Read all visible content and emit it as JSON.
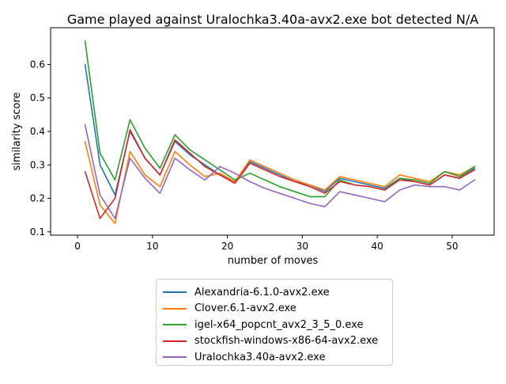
{
  "chart_data": {
    "type": "line",
    "title": "Game played against Uralochka3.40a-avx2.exe bot detected N/A",
    "xlabel": "number of moves",
    "ylabel": "similarity score",
    "xlim": [
      -3.6,
      55.6
    ],
    "ylim": [
      0.09,
      0.71
    ],
    "xticks": [
      0,
      10,
      20,
      30,
      40,
      50
    ],
    "yticks": [
      0.1,
      0.2,
      0.3,
      0.4,
      0.5,
      0.6
    ],
    "ytick_labels": [
      "0.1",
      "0.2",
      "0.3",
      "0.4",
      "0.5",
      "0.6"
    ],
    "grid": false,
    "legend_position": "below",
    "x": [
      1,
      3,
      5,
      7,
      9,
      11,
      13,
      15,
      17,
      19,
      21,
      23,
      25,
      27,
      29,
      31,
      33,
      35,
      37,
      39,
      41,
      43,
      45,
      47,
      49,
      51,
      53
    ],
    "series": [
      {
        "name": "Alexandria-6.1.0-avx2.exe",
        "color": "#1f77b4",
        "values": [
          0.6,
          0.3,
          0.21,
          0.4,
          0.32,
          0.27,
          0.37,
          0.33,
          0.3,
          0.27,
          0.25,
          0.31,
          0.29,
          0.27,
          0.25,
          0.24,
          0.22,
          0.26,
          0.25,
          0.24,
          0.23,
          0.26,
          0.25,
          0.24,
          0.27,
          0.26,
          0.29
        ]
      },
      {
        "name": "Clover.6.1-avx2.exe",
        "color": "#ff7f0e",
        "values": [
          0.37,
          0.18,
          0.125,
          0.34,
          0.27,
          0.235,
          0.34,
          0.3,
          0.265,
          0.275,
          0.25,
          0.315,
          0.295,
          0.275,
          0.255,
          0.24,
          0.225,
          0.265,
          0.255,
          0.245,
          0.235,
          0.27,
          0.26,
          0.25,
          0.28,
          0.27,
          0.295
        ]
      },
      {
        "name": "igel-x64_popcnt_avx2_3_5_0.exe",
        "color": "#2ca02c",
        "values": [
          0.67,
          0.335,
          0.255,
          0.435,
          0.35,
          0.29,
          0.39,
          0.345,
          0.315,
          0.285,
          0.255,
          0.275,
          0.255,
          0.235,
          0.22,
          0.205,
          0.205,
          0.255,
          0.24,
          0.235,
          0.225,
          0.26,
          0.255,
          0.245,
          0.28,
          0.265,
          0.295
        ]
      },
      {
        "name": "stockfish-windows-x86-64-avx2.exe",
        "color": "#d62728",
        "values": [
          0.28,
          0.14,
          0.2,
          0.405,
          0.32,
          0.27,
          0.375,
          0.335,
          0.295,
          0.27,
          0.245,
          0.305,
          0.285,
          0.265,
          0.25,
          0.235,
          0.215,
          0.25,
          0.24,
          0.235,
          0.225,
          0.255,
          0.25,
          0.24,
          0.27,
          0.26,
          0.285
        ]
      },
      {
        "name": "Uralochka3.40a-avx2.exe",
        "color": "#9467bd",
        "values": [
          0.42,
          0.21,
          0.14,
          0.32,
          0.26,
          0.215,
          0.32,
          0.285,
          0.255,
          0.295,
          0.275,
          0.25,
          0.23,
          0.215,
          0.2,
          0.185,
          0.175,
          0.22,
          0.21,
          0.2,
          0.19,
          0.225,
          0.24,
          0.235,
          0.235,
          0.225,
          0.255
        ]
      }
    ]
  }
}
